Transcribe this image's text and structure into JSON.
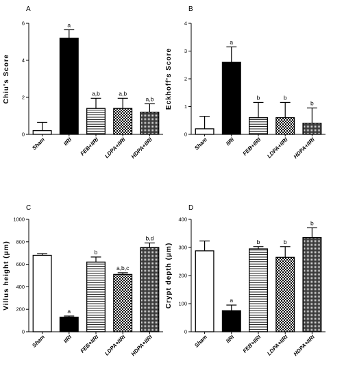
{
  "chart_data": [
    {
      "type": "bar",
      "panel": "A",
      "ylabel": "Chiu's Score",
      "ylim": [
        0,
        6
      ],
      "yticks": [
        0,
        2,
        4,
        6
      ],
      "categories": [
        "Sham",
        "IIRI",
        "FEB+IIRI",
        "LDPA+IIRI",
        "HDPA+IIRI"
      ],
      "values": [
        0.2,
        5.2,
        1.4,
        1.4,
        1.2
      ],
      "errors": [
        0.45,
        0.45,
        0.55,
        0.55,
        0.45
      ],
      "significance": [
        "",
        "a",
        "a,b",
        "a,b",
        "a,b"
      ],
      "fills": [
        "open",
        "solid",
        "horizontal-lines",
        "checker",
        "dense"
      ]
    },
    {
      "type": "bar",
      "panel": "B",
      "ylabel": "Eckhoff's Score",
      "ylim": [
        0,
        4
      ],
      "yticks": [
        0,
        1,
        2,
        3,
        4
      ],
      "categories": [
        "Sham",
        "IIRI",
        "FEB+IIRI",
        "LDPA+IIRI",
        "HDPA+IIRI"
      ],
      "values": [
        0.2,
        2.6,
        0.6,
        0.6,
        0.4
      ],
      "errors": [
        0.45,
        0.55,
        0.55,
        0.55,
        0.55
      ],
      "significance": [
        "",
        "a",
        "b",
        "b",
        "b"
      ],
      "fills": [
        "open",
        "solid",
        "horizontal-lines",
        "checker",
        "dense"
      ]
    },
    {
      "type": "bar",
      "panel": "C",
      "ylabel": "Villus height (μm)",
      "ylim": [
        0,
        1000
      ],
      "yticks": [
        0,
        200,
        400,
        600,
        800,
        1000
      ],
      "categories": [
        "Sham",
        "IIRI",
        "FEB+IIRI",
        "LDPA+IIRI",
        "HDPA+IIRI"
      ],
      "values": [
        680,
        130,
        620,
        510,
        750
      ],
      "errors": [
        15,
        10,
        45,
        15,
        40
      ],
      "significance": [
        "",
        "a",
        "b",
        "a,b,c",
        "b,d"
      ],
      "fills": [
        "open",
        "solid",
        "horizontal-lines",
        "checker",
        "dense"
      ]
    },
    {
      "type": "bar",
      "panel": "D",
      "ylabel": "Crypt depth (μm)",
      "ylim": [
        0,
        400
      ],
      "yticks": [
        0,
        100,
        200,
        300,
        400
      ],
      "categories": [
        "Sham",
        "IIRI",
        "FEB+IIRI",
        "LDPA+IIRI",
        "HDPA+IIRI"
      ],
      "values": [
        288,
        75,
        295,
        265,
        335
      ],
      "errors": [
        35,
        20,
        8,
        38,
        35
      ],
      "significance": [
        "",
        "a",
        "b",
        "b",
        "b"
      ],
      "fills": [
        "open",
        "solid",
        "horizontal-lines",
        "checker",
        "dense"
      ]
    }
  ]
}
